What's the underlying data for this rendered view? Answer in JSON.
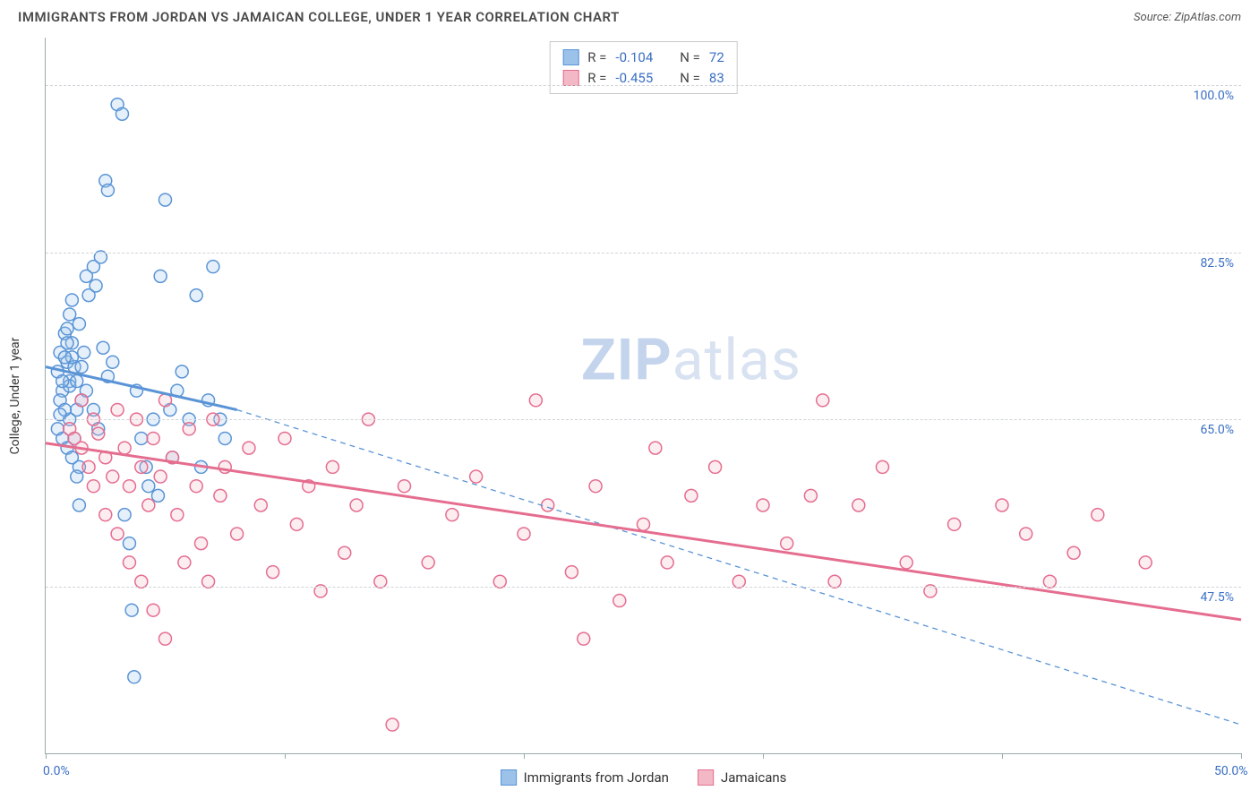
{
  "title": "IMMIGRANTS FROM JORDAN VS JAMAICAN COLLEGE, UNDER 1 YEAR CORRELATION CHART",
  "source_label": "Source:",
  "source_value": "ZipAtlas.com",
  "ylabel": "College, Under 1 year",
  "watermark_bold": "ZIP",
  "watermark_rest": "atlas",
  "chart": {
    "type": "scatter",
    "background_color": "#ffffff",
    "grid_color": "#cfd4d8",
    "axis_color": "#99aaaa",
    "tick_label_color": "#3a6fc4",
    "x_domain": [
      0,
      50
    ],
    "y_domain": [
      30,
      105
    ],
    "x_ticks": [
      0,
      10,
      20,
      30,
      40,
      50
    ],
    "x_tick_labels": {
      "0": "0.0%",
      "50": "50.0%"
    },
    "y_gridlines": [
      47.5,
      65.0,
      82.5,
      100.0
    ],
    "y_tick_labels": [
      "47.5%",
      "65.0%",
      "82.5%",
      "100.0%"
    ],
    "marker_radius": 7,
    "marker_stroke_width": 1.5,
    "marker_fill_opacity": 0.25,
    "series": [
      {
        "id": "jordan",
        "label": "Immigrants from Jordan",
        "color_fill": "#9cc2ea",
        "color_stroke": "#5a94d6",
        "R": "-0.104",
        "N": "72",
        "trend_solid": {
          "x1": 0,
          "y1": 70.5,
          "x2": 8,
          "y2": 66.0,
          "width": 3
        },
        "trend_dashed": {
          "x1": 8,
          "y1": 66.0,
          "x2": 50,
          "y2": 33.0,
          "width": 1.3,
          "dash": "6,5"
        },
        "points": [
          [
            0.5,
            70
          ],
          [
            0.6,
            72
          ],
          [
            0.7,
            68
          ],
          [
            0.8,
            74
          ],
          [
            0.9,
            71
          ],
          [
            1.0,
            69
          ],
          [
            1.1,
            73
          ],
          [
            1.2,
            70.5
          ],
          [
            1.3,
            66
          ],
          [
            1.4,
            75
          ],
          [
            1.5,
            67
          ],
          [
            1.6,
            72
          ],
          [
            1.7,
            80
          ],
          [
            1.8,
            78
          ],
          [
            2.0,
            81
          ],
          [
            2.1,
            79
          ],
          [
            2.3,
            82
          ],
          [
            2.5,
            90
          ],
          [
            2.6,
            89
          ],
          [
            2.8,
            71
          ],
          [
            3.0,
            98
          ],
          [
            3.2,
            97
          ],
          [
            3.3,
            55
          ],
          [
            3.5,
            52
          ],
          [
            3.6,
            45
          ],
          [
            3.7,
            38
          ],
          [
            3.8,
            68
          ],
          [
            4.0,
            63
          ],
          [
            4.2,
            60
          ],
          [
            4.3,
            58
          ],
          [
            4.5,
            65
          ],
          [
            4.7,
            57
          ],
          [
            4.8,
            80
          ],
          [
            5.0,
            88
          ],
          [
            5.2,
            66
          ],
          [
            5.3,
            61
          ],
          [
            5.5,
            68
          ],
          [
            5.7,
            70
          ],
          [
            6.0,
            65
          ],
          [
            6.3,
            78
          ],
          [
            6.5,
            60
          ],
          [
            6.8,
            67
          ],
          [
            7.0,
            81
          ],
          [
            7.3,
            65
          ],
          [
            7.5,
            63
          ],
          [
            1.0,
            65
          ],
          [
            1.2,
            63
          ],
          [
            1.4,
            60
          ],
          [
            0.6,
            67
          ],
          [
            0.8,
            66
          ],
          [
            1.0,
            68.5
          ],
          [
            1.1,
            71.5
          ],
          [
            0.9,
            73
          ],
          [
            1.3,
            69
          ],
          [
            1.5,
            70.5
          ],
          [
            1.7,
            68
          ],
          [
            2.0,
            66
          ],
          [
            2.2,
            64
          ],
          [
            2.4,
            72.5
          ],
          [
            2.6,
            69.5
          ],
          [
            0.7,
            63
          ],
          [
            0.9,
            62
          ],
          [
            1.1,
            61
          ],
          [
            1.3,
            59
          ],
          [
            1.4,
            56
          ],
          [
            0.5,
            64
          ],
          [
            0.6,
            65.5
          ],
          [
            0.7,
            69
          ],
          [
            0.8,
            71.5
          ],
          [
            0.9,
            74.5
          ],
          [
            1.0,
            76
          ],
          [
            1.1,
            77.5
          ]
        ]
      },
      {
        "id": "jamaican",
        "label": "Jamaicans",
        "color_fill": "#f3b8c6",
        "color_stroke": "#e56d8f",
        "R": "-0.455",
        "N": "83",
        "trend_solid": {
          "x1": 0,
          "y1": 62.5,
          "x2": 50,
          "y2": 44.0,
          "width": 3
        },
        "points": [
          [
            1.0,
            64
          ],
          [
            1.2,
            63
          ],
          [
            1.5,
            62
          ],
          [
            1.8,
            60
          ],
          [
            2.0,
            65
          ],
          [
            2.2,
            63.5
          ],
          [
            2.5,
            61
          ],
          [
            2.8,
            59
          ],
          [
            3.0,
            66
          ],
          [
            3.3,
            62
          ],
          [
            3.5,
            58
          ],
          [
            3.8,
            65
          ],
          [
            4.0,
            60
          ],
          [
            4.3,
            56
          ],
          [
            4.5,
            63
          ],
          [
            4.8,
            59
          ],
          [
            5.0,
            67
          ],
          [
            5.3,
            61
          ],
          [
            5.5,
            55
          ],
          [
            5.8,
            50
          ],
          [
            6.0,
            64
          ],
          [
            6.3,
            58
          ],
          [
            6.5,
            52
          ],
          [
            6.8,
            48
          ],
          [
            7.0,
            65
          ],
          [
            7.3,
            57
          ],
          [
            7.5,
            60
          ],
          [
            8.0,
            53
          ],
          [
            8.5,
            62
          ],
          [
            9.0,
            56
          ],
          [
            9.5,
            49
          ],
          [
            10.0,
            63
          ],
          [
            10.5,
            54
          ],
          [
            11.0,
            58
          ],
          [
            11.5,
            47
          ],
          [
            12.0,
            60
          ],
          [
            12.5,
            51
          ],
          [
            13.0,
            56
          ],
          [
            13.5,
            65
          ],
          [
            14.0,
            48
          ],
          [
            14.5,
            33
          ],
          [
            15.0,
            58
          ],
          [
            16.0,
            50
          ],
          [
            17.0,
            55
          ],
          [
            18.0,
            59
          ],
          [
            19.0,
            48
          ],
          [
            20.0,
            53
          ],
          [
            20.5,
            67
          ],
          [
            21.0,
            56
          ],
          [
            22.0,
            49
          ],
          [
            22.5,
            42
          ],
          [
            23.0,
            58
          ],
          [
            24.0,
            46
          ],
          [
            25.0,
            54
          ],
          [
            25.5,
            62
          ],
          [
            26.0,
            50
          ],
          [
            27.0,
            57
          ],
          [
            28.0,
            60
          ],
          [
            29.0,
            48
          ],
          [
            30.0,
            56
          ],
          [
            31.0,
            52
          ],
          [
            32.0,
            57
          ],
          [
            32.5,
            67
          ],
          [
            33.0,
            48
          ],
          [
            34.0,
            56
          ],
          [
            35.0,
            60
          ],
          [
            36.0,
            50
          ],
          [
            37.0,
            47
          ],
          [
            38.0,
            54
          ],
          [
            40.0,
            56
          ],
          [
            41.0,
            53
          ],
          [
            42.0,
            48
          ],
          [
            43.0,
            51
          ],
          [
            44.0,
            55
          ],
          [
            46.0,
            50
          ],
          [
            2.0,
            58
          ],
          [
            2.5,
            55
          ],
          [
            3.0,
            53
          ],
          [
            3.5,
            50
          ],
          [
            4.0,
            48
          ],
          [
            4.5,
            45
          ],
          [
            5.0,
            42
          ],
          [
            1.5,
            67
          ]
        ]
      }
    ]
  },
  "stats_labels": {
    "R": "R =",
    "N": "N ="
  }
}
